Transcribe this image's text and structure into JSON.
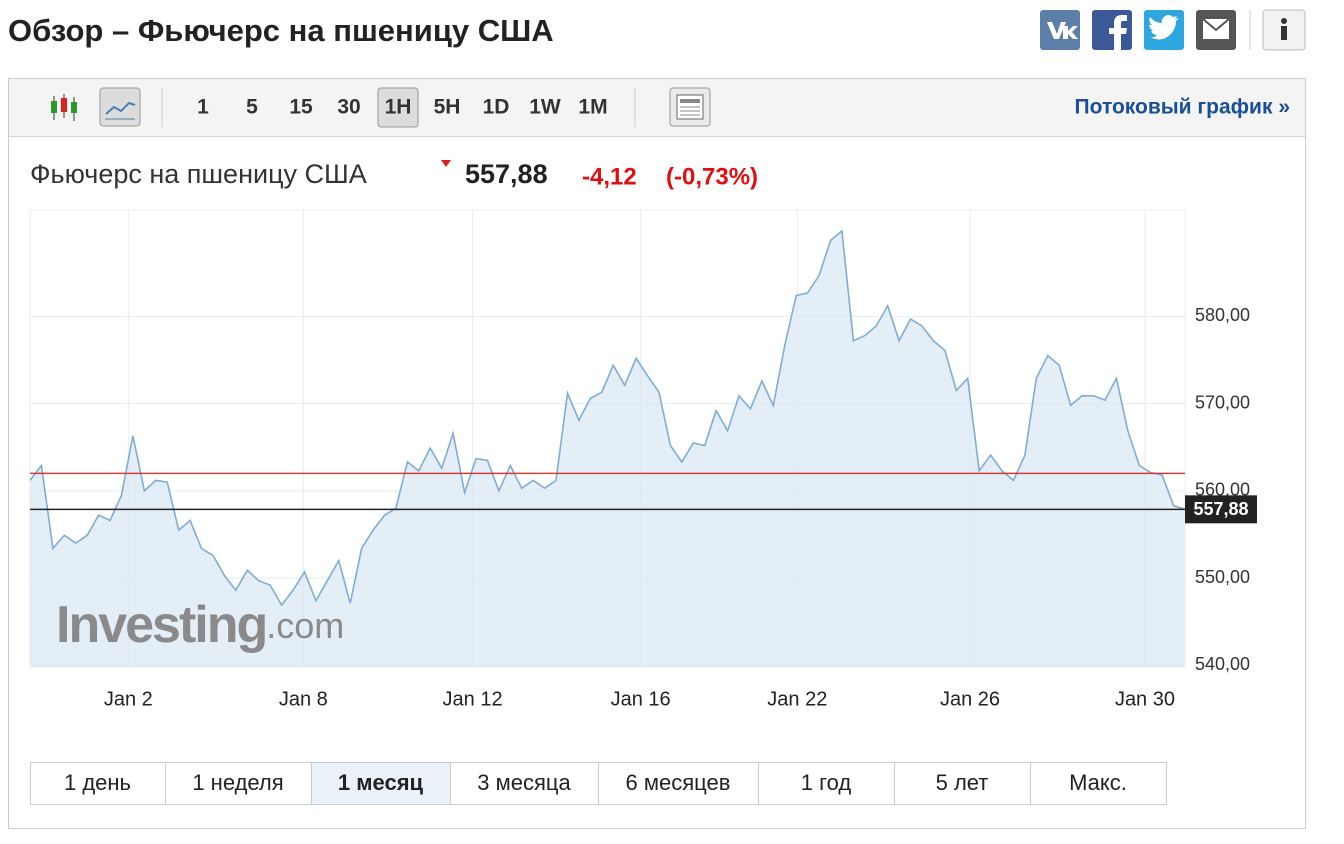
{
  "header": {
    "title": "Обзор – Фьючерс на пшеницу США"
  },
  "toolbar": {
    "intervals": [
      "1",
      "5",
      "15",
      "30",
      "1H",
      "5H",
      "1D",
      "1W",
      "1M"
    ],
    "active_interval": 4,
    "stream_link": "Потоковый график »"
  },
  "quote": {
    "name": "Фьючерс на пшеницу США",
    "price": "557,88",
    "change": "-4,12",
    "change_pct": "(-0,73%)"
  },
  "chart_data": {
    "type": "line",
    "color": "#80acd4",
    "fill": "#e4eef7",
    "values": [
      561.2,
      562.9,
      553.4,
      554.9,
      554.0,
      554.9,
      557.2,
      556.6,
      559.5,
      566.3,
      560.0,
      561.2,
      561.0,
      555.5,
      556.6,
      553.4,
      552.6,
      550.3,
      548.6,
      550.9,
      549.7,
      549.2,
      546.9,
      548.6,
      550.7,
      547.4,
      549.7,
      552.0,
      547.1,
      553.4,
      555.5,
      557.2,
      558.0,
      563.3,
      562.3,
      564.9,
      562.6,
      566.6,
      559.8,
      563.7,
      563.5,
      560.0,
      562.9,
      560.3,
      561.2,
      560.3,
      561.2,
      571.2,
      568.1,
      570.6,
      571.3,
      574.4,
      572.1,
      575.2,
      573.2,
      571.3,
      565.2,
      563.3,
      565.5,
      565.2,
      569.2,
      566.9,
      570.9,
      569.4,
      572.6,
      569.8,
      576.7,
      582.4,
      582.7,
      584.7,
      588.7,
      589.8,
      577.2,
      577.8,
      578.9,
      581.2,
      577.2,
      579.7,
      578.9,
      577.2,
      576.1,
      571.5,
      572.9,
      562.3,
      564.1,
      562.3,
      561.2,
      564.1,
      572.9,
      575.5,
      574.4,
      569.8,
      570.9,
      570.9,
      570.4,
      572.9,
      566.9,
      562.9,
      562.1,
      561.8,
      558.3,
      557.88
    ],
    "xlim": [
      0,
      101
    ],
    "xticks": [
      {
        "value": 8.6,
        "label": "Jan 2"
      },
      {
        "value": 23.9,
        "label": "Jan 8"
      },
      {
        "value": 38.7,
        "label": "Jan 12"
      },
      {
        "value": 53.4,
        "label": "Jan 16"
      },
      {
        "value": 67.1,
        "label": "Jan 22"
      },
      {
        "value": 82.2,
        "label": "Jan 26"
      },
      {
        "value": 97.5,
        "label": "Jan 30"
      }
    ],
    "ylim": [
      539.8,
      592.2
    ],
    "yticks": [
      {
        "value": 540,
        "label": "540,00"
      },
      {
        "value": 550,
        "label": "550,00"
      },
      {
        "value": 560,
        "label": "560,00"
      },
      {
        "value": 570,
        "label": "570,00"
      },
      {
        "value": 580,
        "label": "580,00"
      }
    ],
    "grid": true,
    "last_price": {
      "value": 557.88,
      "label": "557,88"
    },
    "previous_close": 562,
    "watermark_brand": "Investing",
    "watermark_suffix": ".com"
  },
  "range_tabs": {
    "items": [
      "1 день",
      "1 неделя",
      "1 месяц",
      "3 месяца",
      "6 месяцев",
      "1 год",
      "5 лет",
      "Макс."
    ],
    "active": 2
  }
}
